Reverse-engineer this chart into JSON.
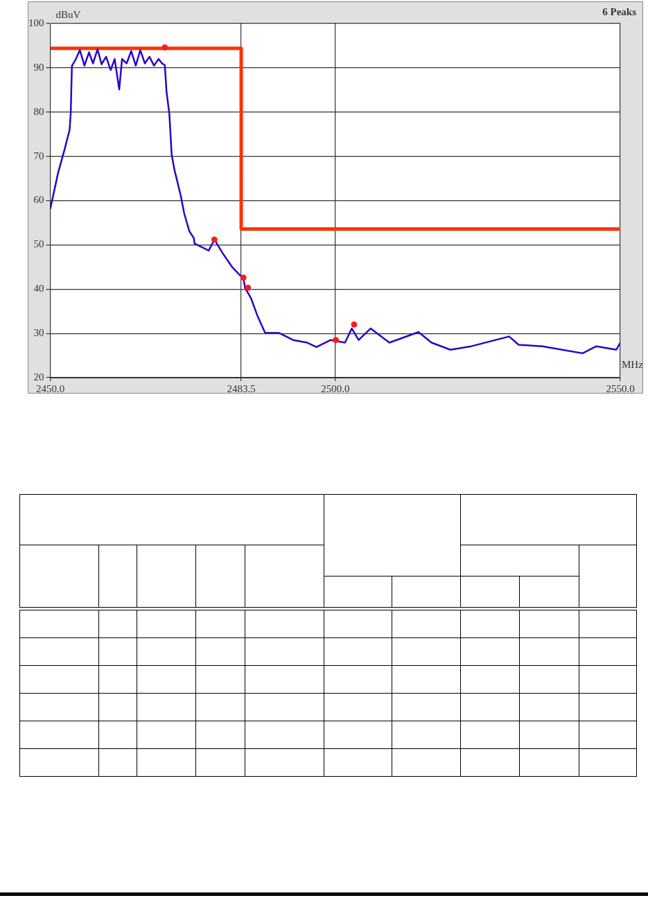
{
  "chart_data": {
    "type": "line",
    "ylabel": "dBuV",
    "xlabel": "MHz",
    "annotations": [
      "6 Peaks"
    ],
    "xlim": [
      2450,
      2550
    ],
    "ylim": [
      20,
      100
    ],
    "xticks": [
      {
        "value": 2450,
        "label": "2450.0"
      },
      {
        "value": 2483.5,
        "label": "2483.5"
      },
      {
        "value": 2500,
        "label": "2500.0"
      },
      {
        "value": 2550,
        "label": "2550.0"
      }
    ],
    "yticks": [
      20,
      30,
      40,
      50,
      60,
      70,
      80,
      90,
      100
    ],
    "grid": true,
    "series": [
      {
        "color": "#2b00c8",
        "marker": "none",
        "x": [
          2450,
          2451.4,
          2452.5,
          2453.4,
          2453.6,
          2453.8,
          2454.5,
          2455.2,
          2456,
          2456.8,
          2457.5,
          2458.3,
          2459,
          2459.8,
          2460.6,
          2461.3,
          2462.1,
          2462.6,
          2463.4,
          2464.2,
          2465,
          2465.8,
          2466.6,
          2467.4,
          2468.2,
          2469,
          2469.6,
          2470.1,
          2470.4,
          2470.9,
          2471.3,
          2471.8,
          2472.9,
          2473.5,
          2474.4,
          2475.2,
          2475.3,
          2477.8,
          2478.8,
          2480.2,
          2481.9,
          2483.1,
          2483.9,
          2484.2,
          2485.2,
          2486.4,
          2487.7,
          2490.1,
          2492.6,
          2495.1,
          2496.7,
          2499.2,
          2501.7,
          2502.9,
          2504.1,
          2506.2,
          2509.5,
          2514.6,
          2516.9,
          2520.2,
          2523.9,
          2530.5,
          2532.2,
          2536.3,
          2543.4,
          2545.8,
          2549.3,
          2550
        ],
        "values": [
          58.1,
          66.4,
          71.5,
          76,
          80,
          90.4,
          92,
          94,
          90.5,
          93.5,
          91,
          94.2,
          90.8,
          92.5,
          89.5,
          92,
          85.1,
          92,
          91,
          93.8,
          90.5,
          94,
          91,
          92.5,
          90.5,
          92,
          91,
          90.6,
          84.6,
          79.5,
          70.4,
          66.9,
          61.1,
          57.1,
          53.1,
          51.5,
          50.3,
          48.7,
          51.2,
          48.2,
          45,
          43.4,
          42.3,
          40.2,
          38,
          33.8,
          30.1,
          30.1,
          28.5,
          27.9,
          26.9,
          28.5,
          27.9,
          31.1,
          28.5,
          31.1,
          27.9,
          30.3,
          27.9,
          26.3,
          27.1,
          29.3,
          27.4,
          27.1,
          25.5,
          27.1,
          26.3,
          27.9
        ]
      },
      {
        "type": "step",
        "color": "#ff3300",
        "marker": "none",
        "x": [
          2450,
          2483.5,
          2550
        ],
        "values": [
          94.4,
          53.6,
          53.6
        ]
      },
      {
        "type": "scatter",
        "color": "#ff1a1a",
        "marker": "circle",
        "x": [
          2470.1,
          2478.8,
          2483.9,
          2484.7,
          2500.1,
          2503.3
        ],
        "values": [
          94.6,
          51.2,
          42.6,
          40.3,
          28.5,
          32
        ]
      }
    ]
  }
}
